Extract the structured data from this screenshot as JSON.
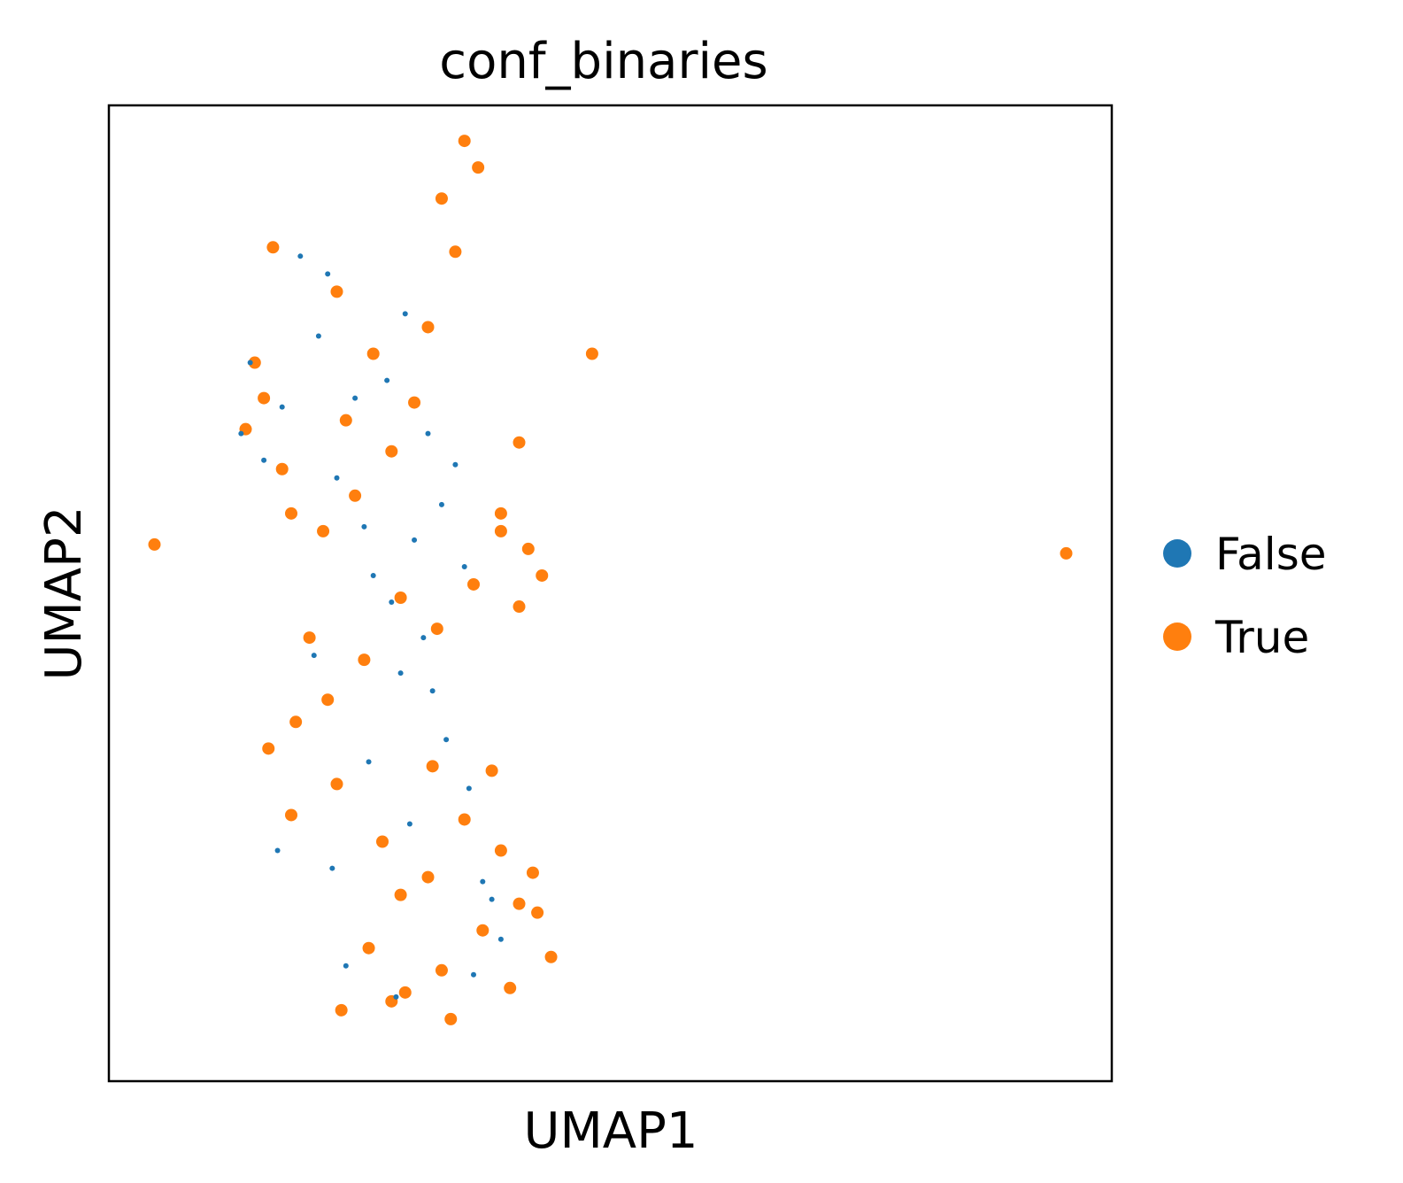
{
  "chart_data": {
    "type": "scatter",
    "title": "conf_binaries",
    "xlabel": "UMAP1",
    "ylabel": "UMAP2",
    "xticks": [],
    "yticks": [],
    "grid": false,
    "legend_position": "right-outside",
    "xlim": [
      -6.0,
      16.0
    ],
    "ylim": [
      -11.0,
      11.0
    ],
    "series": [
      {
        "name": "False",
        "color": "#1f77b4",
        "x": [
          -1.8,
          -1.2,
          -0.6,
          0.1,
          1.0,
          1.6,
          1.3,
          0.7,
          -0.2,
          1.8,
          -2.9,
          -3.1,
          -2.6,
          -2.2,
          -1.4,
          -1.0,
          -0.4,
          0.2,
          0.9,
          0.4,
          1.1,
          1.4,
          -1.5,
          -0.3,
          0.6,
          2.2,
          2.6,
          2.0,
          0.3,
          -0.8,
          -2.3,
          1.9,
          2.4,
          -1.1,
          0.5
        ],
        "y": [
          7.6,
          7.2,
          4.4,
          4.8,
          3.6,
          2.9,
          2.0,
          1.2,
          0.4,
          0.6,
          5.2,
          3.6,
          3.0,
          4.2,
          5.8,
          2.6,
          1.5,
          -0.2,
          -1.0,
          -1.8,
          -2.2,
          -3.3,
          -1.4,
          -3.8,
          -5.2,
          -6.5,
          -7.8,
          -8.6,
          -9.1,
          -8.4,
          -5.8,
          -4.4,
          -6.9,
          -6.2,
          6.3
        ]
      },
      {
        "name": "True",
        "color": "#ff7f0e",
        "x": [
          -5.0,
          15.0,
          4.6,
          3.0,
          -2.4,
          -1.0,
          -0.2,
          0.7,
          1.3,
          1.8,
          2.1,
          1.6,
          1.0,
          0.2,
          -0.6,
          -1.3,
          -2.0,
          -2.8,
          -3.0,
          -2.6,
          -2.2,
          2.6,
          3.2,
          3.5,
          3.0,
          2.6,
          2.0,
          1.2,
          0.4,
          -0.4,
          -1.2,
          -1.9,
          -2.5,
          -2.0,
          -1.0,
          0.0,
          1.0,
          1.8,
          2.6,
          3.4,
          3.0,
          2.2,
          1.3,
          0.5,
          -0.3,
          -0.9,
          0.4,
          1.1,
          2.4,
          3.3,
          3.7,
          2.8,
          1.5,
          0.2,
          -1.6,
          -0.8
        ],
        "y": [
          1.1,
          0.9,
          5.4,
          3.4,
          7.8,
          6.8,
          5.4,
          4.3,
          8.9,
          10.2,
          9.6,
          7.7,
          6.0,
          3.2,
          2.2,
          1.4,
          1.8,
          5.2,
          3.7,
          4.4,
          2.8,
          1.8,
          1.0,
          0.4,
          -0.3,
          1.4,
          0.2,
          -0.8,
          -0.1,
          -1.5,
          -2.4,
          -2.9,
          -3.5,
          -5.0,
          -4.3,
          -5.6,
          -6.4,
          -5.1,
          -5.8,
          -7.2,
          -7.0,
          -7.6,
          -8.5,
          -9.0,
          -8.0,
          -9.4,
          -6.8,
          -3.9,
          -4.0,
          -6.3,
          -8.2,
          -8.9,
          -9.6,
          -9.2,
          -1.0,
          3.9
        ]
      }
    ]
  }
}
